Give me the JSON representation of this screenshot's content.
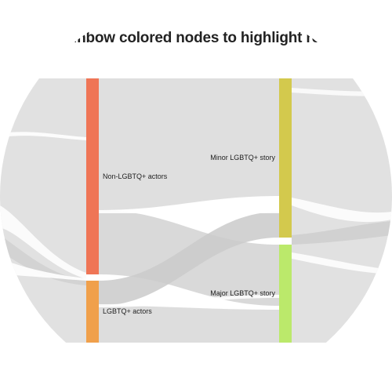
{
  "title": "ne rainbow colored nodes to highlight rela",
  "nodes": {
    "non_lgbtq_actors": {
      "label": "Non-LGBTQ+ actors",
      "color": "#ef7556"
    },
    "lgbtq_actors": {
      "label": "LGBTQ+ actors",
      "color": "#f0a04b"
    },
    "minor_story": {
      "label": "Minor LGBTQ+ story",
      "color": "#d3c94d"
    },
    "major_story": {
      "label": "Major LGBTQ+ story",
      "color": "#bbe96b"
    }
  },
  "link_color": "#d9d9d9"
}
